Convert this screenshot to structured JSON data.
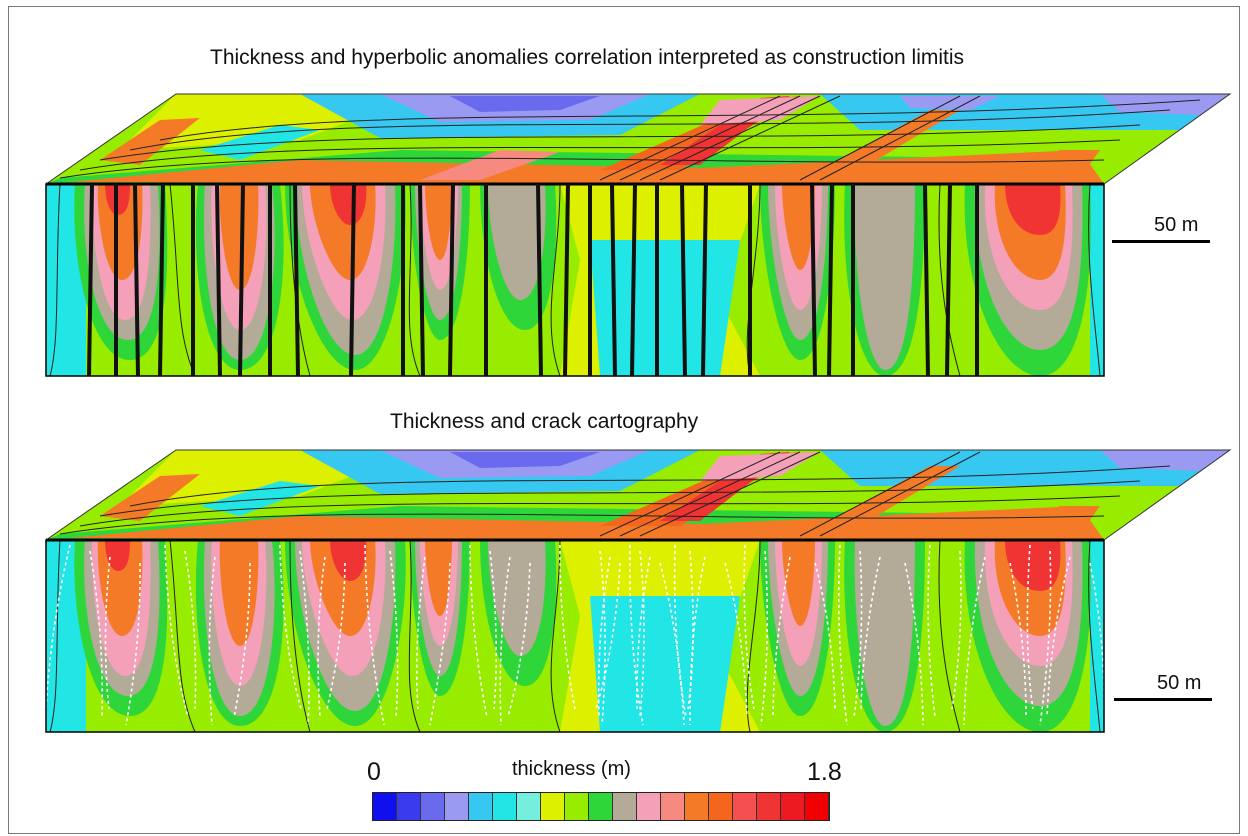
{
  "panels": [
    {
      "title": "Thickness and hyperbolic anomalies correlation interpreted as construction limitis",
      "scale_label": "50 m",
      "overlay": "anomaly-lines"
    },
    {
      "title": "Thickness and crack cartography",
      "scale_label": "50 m",
      "overlay": "crack-lines"
    }
  ],
  "legend": {
    "title": "thickness (m)",
    "min_label": "0",
    "max_label": "1.8",
    "colors": [
      "#1010ee",
      "#3a3aee",
      "#6a6aee",
      "#9a9af2",
      "#36c8f0",
      "#22e6e6",
      "#76eede",
      "#dcf000",
      "#98ec00",
      "#2ed63a",
      "#b4aa98",
      "#f4a0b8",
      "#f78a80",
      "#f47a28",
      "#f4661e",
      "#f45050",
      "#f03434",
      "#ee1a22",
      "#f00000"
    ]
  }
}
